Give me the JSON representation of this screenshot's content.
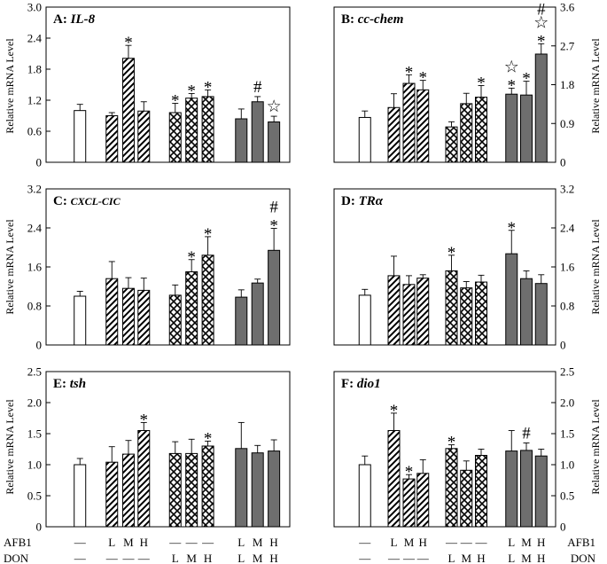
{
  "y_axis_label": "Relative mRNA Level",
  "x_axis": {
    "labels_left": {
      "afb1": [
        "—",
        "L",
        "M",
        "H",
        "—",
        "—",
        "—",
        "L",
        "M",
        "H"
      ],
      "don": [
        "—",
        "—",
        "—",
        "—",
        "L",
        "M",
        "H",
        "L",
        "M",
        "H"
      ]
    },
    "labels_right": {
      "afb1": [
        "—",
        "L",
        "M",
        "H",
        "—",
        "—",
        "—",
        "L",
        "M",
        "H"
      ],
      "don": [
        "—",
        "—",
        "—",
        "—",
        "L",
        "M",
        "H",
        "L",
        "M",
        "H"
      ]
    },
    "row_names": {
      "afb1": "AFB1",
      "don": "DON"
    }
  },
  "colors": {
    "gray_fill": "#6e6e6e",
    "outline": "#000000",
    "background": "#ffffff"
  },
  "chart_data": [
    {
      "type": "bar",
      "panel": "A",
      "title_prefix": "A:",
      "title_gene": "IL-8",
      "ylabel": "Relative mRNA Level",
      "y_axis_side": "left",
      "ylim": [
        0,
        3.0
      ],
      "yticks": [
        "0",
        "0.6",
        "1.2",
        "1.8",
        "2.4",
        "3.0"
      ],
      "categories": [
        "Control",
        "AFB1-L",
        "AFB1-M",
        "AFB1-H",
        "DON-L",
        "DON-M",
        "DON-H",
        "AFB1+DON-L",
        "AFB1+DON-M",
        "AFB1+DON-H"
      ],
      "values": [
        1.0,
        0.9,
        2.01,
        0.99,
        0.96,
        1.24,
        1.27,
        0.84,
        1.17,
        0.78
      ],
      "errors": [
        0.12,
        0.06,
        0.25,
        0.18,
        0.18,
        0.09,
        0.13,
        0.19,
        0.1,
        0.11
      ],
      "markers": [
        "",
        "",
        "*",
        "",
        "*",
        "*",
        "*",
        "",
        "#",
        "☆"
      ]
    },
    {
      "type": "bar",
      "panel": "B",
      "title_prefix": "B:",
      "title_gene": "cc-chem",
      "ylabel": "Relative mRNA Level",
      "y_axis_side": "right",
      "ylim": [
        0,
        3.6
      ],
      "yticks": [
        "0",
        "0.9",
        "1.8",
        "2.7",
        "3.6"
      ],
      "categories": [
        "Control",
        "AFB1-L",
        "AFB1-M",
        "AFB1-H",
        "DON-L",
        "DON-M",
        "DON-H",
        "AFB1+DON-L",
        "AFB1+DON-M",
        "AFB1+DON-H"
      ],
      "values": [
        1.04,
        1.27,
        1.83,
        1.68,
        0.82,
        1.36,
        1.51,
        1.58,
        1.56,
        2.51
      ],
      "errors": [
        0.15,
        0.32,
        0.2,
        0.22,
        0.12,
        0.24,
        0.27,
        0.14,
        0.32,
        0.24
      ],
      "markers": [
        "",
        "",
        "*",
        "*",
        "",
        "",
        "*",
        "☆*",
        "*",
        "#☆*"
      ]
    },
    {
      "type": "bar",
      "panel": "C",
      "title_prefix": "C:",
      "title_gene": "CXCL-CIC",
      "ylabel": "Relative mRNA Level",
      "y_axis_side": "left",
      "ylim": [
        0,
        3.2
      ],
      "yticks": [
        "0",
        "0.8",
        "1.6",
        "2.4",
        "3.2"
      ],
      "categories": [
        "Control",
        "AFB1-L",
        "AFB1-M",
        "AFB1-H",
        "DON-L",
        "DON-M",
        "DON-H",
        "AFB1+DON-L",
        "AFB1+DON-M",
        "AFB1+DON-H"
      ],
      "values": [
        1.0,
        1.36,
        1.16,
        1.12,
        1.02,
        1.5,
        1.84,
        0.98,
        1.27,
        1.94
      ],
      "errors": [
        0.1,
        0.35,
        0.22,
        0.25,
        0.21,
        0.25,
        0.38,
        0.15,
        0.08,
        0.45
      ],
      "markers": [
        "",
        "",
        "",
        "",
        "",
        "*",
        "*",
        "",
        "",
        "#*"
      ]
    },
    {
      "type": "bar",
      "panel": "D",
      "title_prefix": "D:",
      "title_gene": "TRα",
      "ylabel": "Relative mRNA Level",
      "y_axis_side": "right",
      "ylim": [
        0,
        3.2
      ],
      "yticks": [
        "0",
        "0.8",
        "1.6",
        "2.4",
        "3.2"
      ],
      "categories": [
        "Control",
        "AFB1-L",
        "AFB1-M",
        "AFB1-H",
        "DON-L",
        "DON-M",
        "DON-H",
        "AFB1+DON-L",
        "AFB1+DON-M",
        "AFB1+DON-H"
      ],
      "values": [
        1.02,
        1.42,
        1.24,
        1.37,
        1.52,
        1.17,
        1.29,
        1.87,
        1.36,
        1.26
      ],
      "errors": [
        0.12,
        0.4,
        0.18,
        0.07,
        0.32,
        0.13,
        0.14,
        0.48,
        0.16,
        0.18
      ],
      "markers": [
        "",
        "",
        "",
        "",
        "*",
        "",
        "",
        "*",
        "",
        ""
      ]
    },
    {
      "type": "bar",
      "panel": "E",
      "title_prefix": "E:",
      "title_gene": "tsh",
      "ylabel": "Relative mRNA Level",
      "y_axis_side": "left",
      "ylim": [
        0,
        2.5
      ],
      "yticks": [
        "0",
        "0.5",
        "1.0",
        "1.5",
        "2.0",
        "2.5"
      ],
      "categories": [
        "Control",
        "AFB1-L",
        "AFB1-M",
        "AFB1-H",
        "DON-L",
        "DON-M",
        "DON-H",
        "AFB1+DON-L",
        "AFB1+DON-M",
        "AFB1+DON-H"
      ],
      "values": [
        1.0,
        1.04,
        1.17,
        1.55,
        1.18,
        1.18,
        1.3,
        1.26,
        1.19,
        1.22
      ],
      "errors": [
        0.1,
        0.25,
        0.22,
        0.13,
        0.19,
        0.23,
        0.08,
        0.42,
        0.12,
        0.18
      ],
      "markers": [
        "",
        "",
        "",
        "*",
        "",
        "",
        "*",
        "",
        "",
        ""
      ]
    },
    {
      "type": "bar",
      "panel": "F",
      "title_prefix": "F:",
      "title_gene": "dio1",
      "ylabel": "Relative mRNA Level",
      "y_axis_side": "right",
      "ylim": [
        0,
        2.5
      ],
      "yticks": [
        "0",
        "0.5",
        "1.0",
        "1.5",
        "2.0",
        "2.5"
      ],
      "categories": [
        "Control",
        "AFB1-L",
        "AFB1-M",
        "AFB1-H",
        "DON-L",
        "DON-M",
        "DON-H",
        "AFB1+DON-L",
        "AFB1+DON-M",
        "AFB1+DON-H"
      ],
      "values": [
        1.0,
        1.55,
        0.77,
        0.86,
        1.26,
        0.91,
        1.15,
        1.22,
        1.23,
        1.14
      ],
      "errors": [
        0.14,
        0.28,
        0.07,
        0.22,
        0.06,
        0.15,
        0.1,
        0.33,
        0.12,
        0.11
      ],
      "markers": [
        "",
        "*",
        "*",
        "",
        "*",
        "",
        "",
        "",
        "#",
        ""
      ]
    }
  ]
}
